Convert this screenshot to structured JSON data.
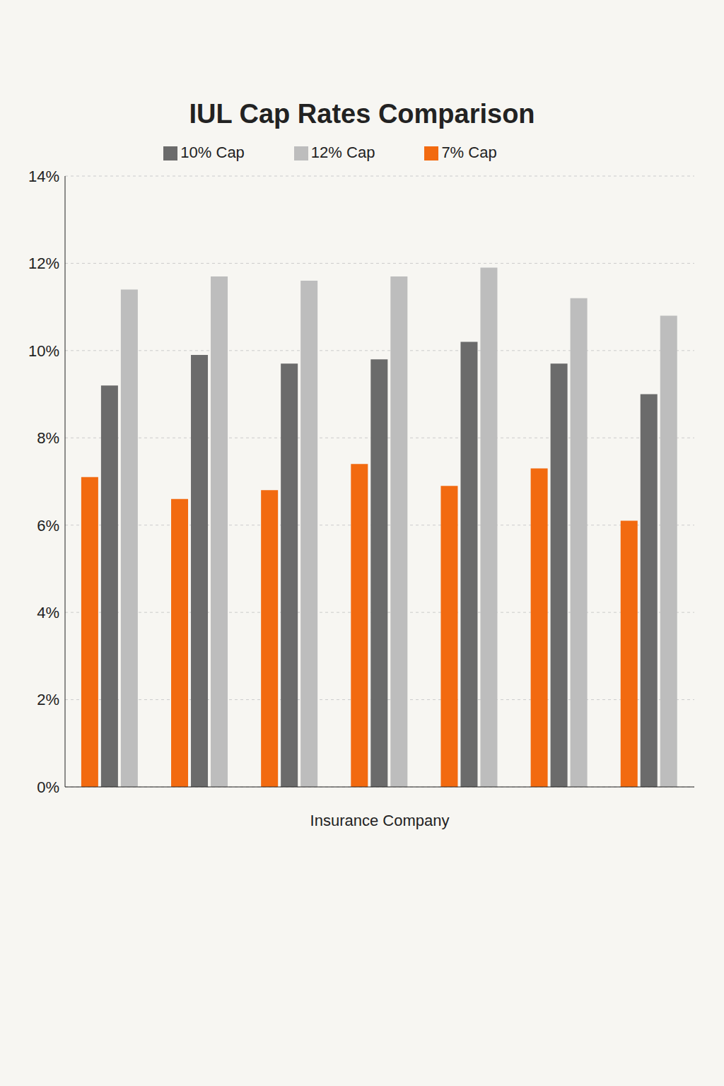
{
  "chart_data": {
    "type": "bar",
    "title": "IUL Cap Rates Comparison",
    "x_label": "Insurance Company",
    "categories": [
      null,
      null,
      null,
      null,
      null,
      null,
      null
    ],
    "series": [
      {
        "name": "7% Cap",
        "color": "#f26a10",
        "values": [
          7.1,
          6.6,
          6.8,
          7.4,
          6.9,
          7.3,
          6.1
        ]
      },
      {
        "name": "10% Cap",
        "color": "#6b6b6b",
        "values": [
          9.2,
          9.9,
          9.7,
          9.8,
          10.2,
          9.7,
          9.0
        ]
      },
      {
        "name": "12% Cap",
        "color": "#bdbdbd",
        "values": [
          11.4,
          11.7,
          11.6,
          11.7,
          11.9,
          11.2,
          10.8
        ]
      }
    ],
    "ylim": [
      0,
      14
    ],
    "yticks": [
      {
        "value": 0,
        "label": "0%"
      },
      {
        "value": 2,
        "label": "2%"
      },
      {
        "value": 4,
        "label": "4%"
      },
      {
        "value": 6,
        "label": "6%"
      },
      {
        "value": 8,
        "label": "8%"
      },
      {
        "value": 10,
        "label": "10%"
      },
      {
        "value": 12,
        "label": "12%"
      },
      {
        "value": 14,
        "label": "14%"
      }
    ],
    "grid": true,
    "legend": "top"
  }
}
